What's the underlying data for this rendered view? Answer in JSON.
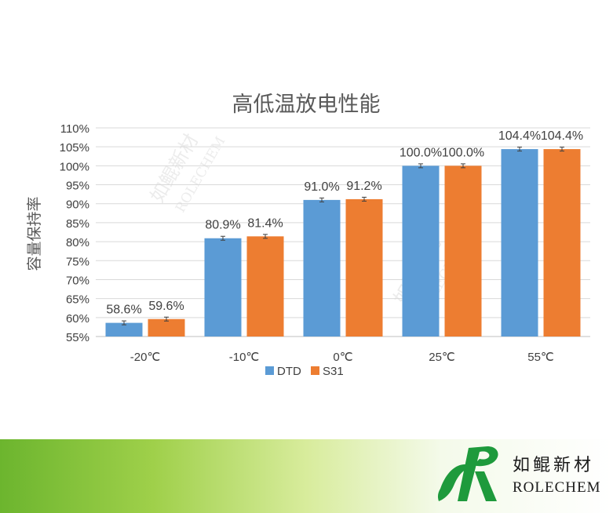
{
  "chart_data": {
    "type": "bar",
    "title": "高低温放电性能",
    "ylabel": "容量保持率",
    "xlabel": "",
    "categories": [
      "-20℃",
      "-10℃",
      "0℃",
      "25℃",
      "55℃"
    ],
    "ylim": [
      55,
      110
    ],
    "yticks": [
      55,
      60,
      65,
      70,
      75,
      80,
      85,
      90,
      95,
      100,
      105,
      110
    ],
    "ytick_labels": [
      "55%",
      "60%",
      "65%",
      "70%",
      "75%",
      "80%",
      "85%",
      "90%",
      "95%",
      "100%",
      "105%",
      "110%"
    ],
    "grid": true,
    "legend": "bottom",
    "series": [
      {
        "name": "DTD",
        "color": "#5b9bd5",
        "values": [
          58.6,
          80.9,
          91.0,
          100.0,
          104.4
        ],
        "labels": [
          "58.6%",
          "80.9%",
          "91.0%",
          "100.0%",
          "104.4%"
        ]
      },
      {
        "name": "S31",
        "color": "#ed7d31",
        "values": [
          59.6,
          81.4,
          91.2,
          100.0,
          104.4
        ],
        "labels": [
          "59.6%",
          "81.4%",
          "91.2%",
          "100.0%",
          "104.4%"
        ]
      }
    ]
  },
  "watermark": {
    "cn": "如鲲新材",
    "en": "ROLECHEM"
  },
  "logo": {
    "cn": "如鲲新材",
    "en": "ROLECHEM",
    "brand_color": "#1e9a3c"
  }
}
